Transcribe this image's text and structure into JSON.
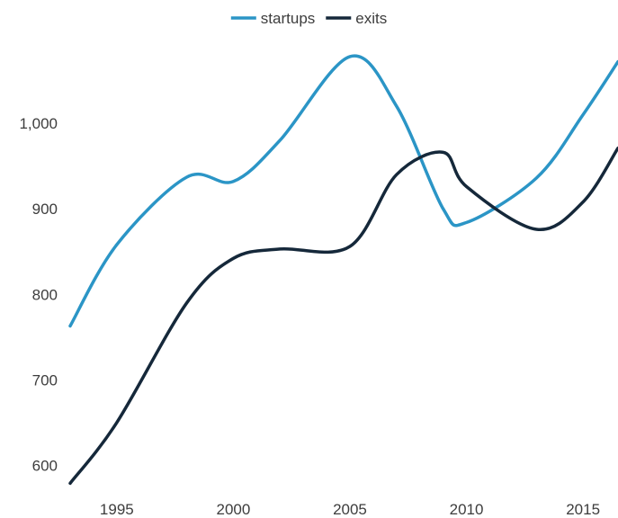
{
  "chart_data": {
    "type": "line",
    "title": "",
    "xlabel": "",
    "ylabel": "",
    "x": [
      1993,
      1995,
      1998,
      2000,
      2002,
      2005,
      2007,
      2009,
      2010,
      2013,
      2015,
      2016.5
    ],
    "xlim": [
      1993,
      2016.5
    ],
    "ylim": [
      570,
      1100
    ],
    "x_ticks": [
      1995,
      2000,
      2005,
      2010,
      2015
    ],
    "x_tick_labels": [
      "1995",
      "2000",
      "2005",
      "2010",
      "2015"
    ],
    "y_ticks": [
      600,
      700,
      800,
      900,
      1000
    ],
    "y_tick_labels": [
      "600",
      "700",
      "800",
      "900",
      "1,000"
    ],
    "grid": false,
    "legend_position": "top-center",
    "series": [
      {
        "name": "startups",
        "color": "#2b95c6",
        "values": [
          763,
          858,
          937,
          932,
          980,
          1078,
          1020,
          900,
          884,
          936,
          1010,
          1072
        ]
      },
      {
        "name": "exits",
        "color": "#15283a",
        "values": [
          579,
          650,
          790,
          842,
          853,
          856,
          940,
          966,
          926,
          876,
          908,
          971
        ]
      }
    ]
  }
}
